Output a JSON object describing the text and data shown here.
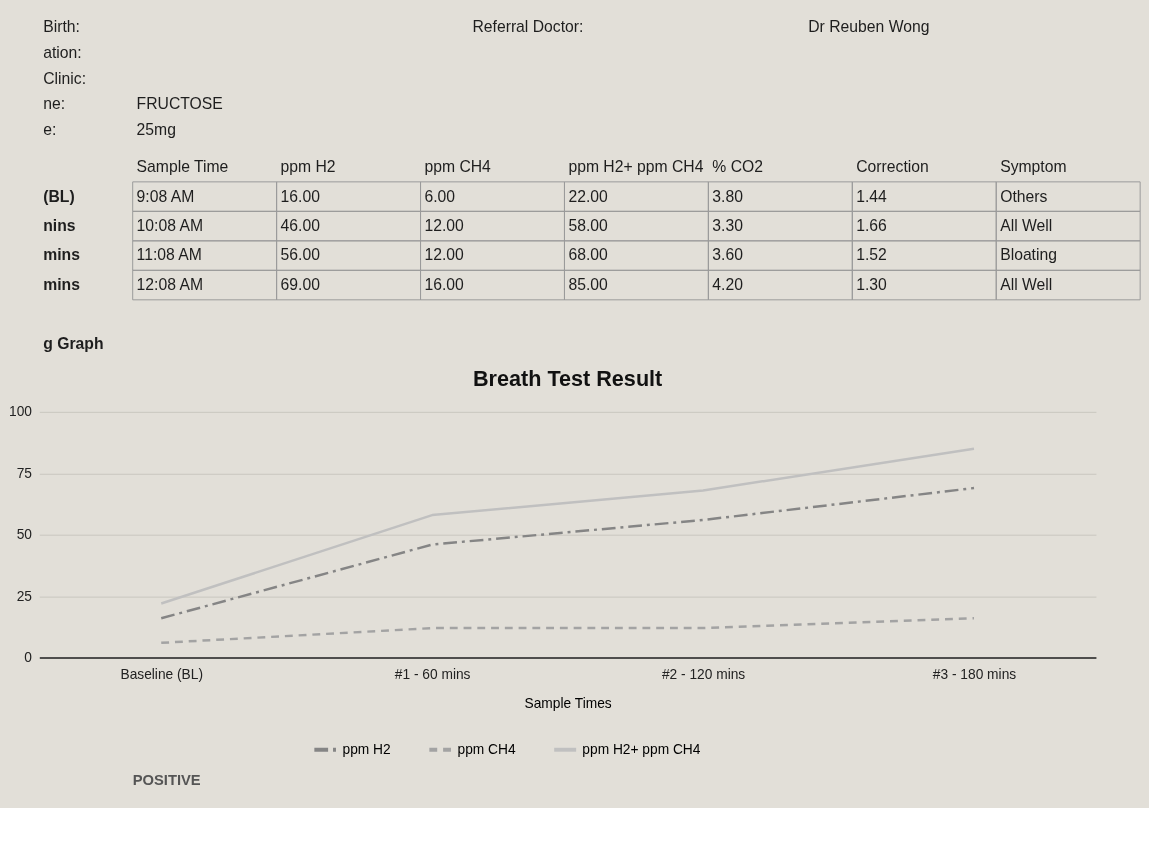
{
  "chart_data": [
    {
      "type": "other",
      "y_categories": [
        "Birth:",
        "ation:",
        "Clinic:",
        "ne:",
        "e:"
      ],
      "cell_labels": [
        [
          null,
          "Referral Doctor:",
          "Dr Reuben Wong"
        ],
        [
          null,
          null,
          null
        ],
        [
          null,
          null,
          null
        ],
        [
          "FRUCTOSE",
          null,
          null
        ],
        [
          "25mg",
          null,
          null
        ]
      ]
    },
    {
      "type": "other",
      "categories": [
        "Sample Time",
        "ppm H2",
        "ppm CH4",
        "ppm H2+ ppm CH4",
        "% CO2",
        "Correction",
        "Symptom"
      ],
      "y_categories": [
        "(BL)",
        "nins",
        "mins",
        "mins"
      ],
      "cell_labels": [
        [
          "9:08 AM",
          "16.00",
          "6.00",
          "22.00",
          "3.80",
          "1.44",
          "Others"
        ],
        [
          "10:08 AM",
          "46.00",
          "12.00",
          "58.00",
          "3.30",
          "1.66",
          "All Well"
        ],
        [
          "11:08 AM",
          "56.00",
          "12.00",
          "68.00",
          "3.60",
          "1.52",
          "Bloating"
        ],
        [
          "12:08 AM",
          "69.00",
          "16.00",
          "85.00",
          "4.20",
          "1.30",
          "All Well"
        ]
      ],
      "annotations": [
        "g Graph"
      ]
    },
    {
      "type": "line",
      "title": "Breath Test Result",
      "xlabel": "Sample Times",
      "categories": [
        "Baseline (BL)",
        "#1 - 60 mins",
        "#2 - 120 mins",
        "#3 - 180 mins"
      ],
      "series": [
        {
          "name": "ppm H2",
          "color": "#858585",
          "line_style": "dashdot",
          "values": [
            16,
            46,
            56,
            69
          ]
        },
        {
          "name": "ppm CH4",
          "color": "#a3a3a3",
          "line_style": "dashed",
          "values": [
            6,
            12,
            12,
            16
          ]
        },
        {
          "name": "ppm H2+ ppm CH4",
          "color": "#c0c0c0",
          "line_style": "solid",
          "values": [
            22,
            58,
            68,
            85
          ]
        }
      ],
      "ylim": [
        0,
        100
      ],
      "yticks": [
        0,
        25,
        50,
        75,
        100
      ],
      "grid": "y",
      "legend": "bottom",
      "annotations": [
        "POSITIVE"
      ]
    }
  ]
}
